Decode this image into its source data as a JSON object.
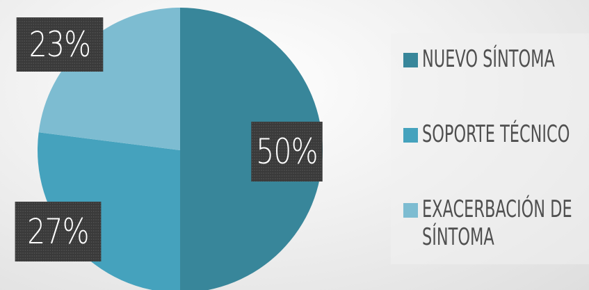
{
  "chart_data": {
    "type": "pie",
    "slices": [
      {
        "label": "NUEVO SÍNTOMA",
        "value": 50,
        "display": "50%",
        "color": "#38869a"
      },
      {
        "label": "SOPORTE TÉCNICO",
        "value": 27,
        "display": "27%",
        "color": "#45a2bd"
      },
      {
        "label": "EXACERBACIÓN DE SÍNTOMA",
        "value": 23,
        "display": "23%",
        "color": "#7dbcd1"
      }
    ],
    "legend_position": "right"
  },
  "legend": {
    "items": [
      {
        "label": "NUEVO SÍNTOMA",
        "color": "#38869a"
      },
      {
        "label": "SOPORTE TÉCNICO",
        "color": "#45a2bd"
      },
      {
        "label_lines": [
          "EXACERBACIÓN DE",
          "SÍNTOMA"
        ],
        "color": "#7dbcd1"
      }
    ]
  }
}
